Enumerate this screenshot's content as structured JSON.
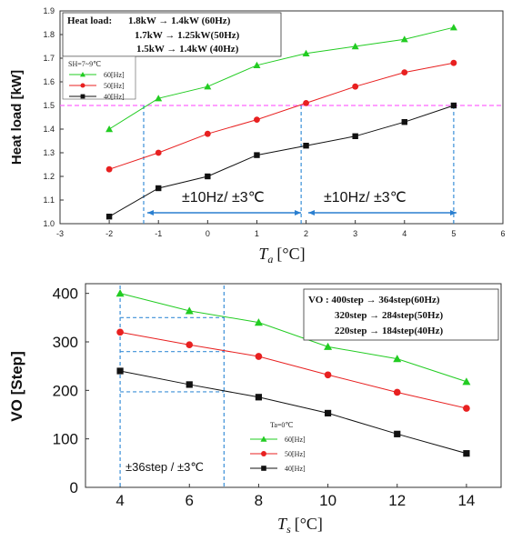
{
  "chart_data": [
    {
      "type": "line",
      "xlabel": "T_a [°C]",
      "xlabel_main": "T",
      "xlabel_sub": "a",
      "xlabel_unit": "[°C]",
      "ylabel": "Heat load [kW]",
      "xlim": [
        -3,
        6
      ],
      "ylim": [
        1.0,
        1.9
      ],
      "xticks": [
        "-3",
        "-2",
        "-1",
        "0",
        "1",
        "2",
        "3",
        "4",
        "5",
        "6"
      ],
      "yticks": [
        "1.0",
        "1.1",
        "1.2",
        "1.3",
        "1.4",
        "1.5",
        "1.6",
        "1.7",
        "1.8",
        "1.9"
      ],
      "x": [
        -2,
        -1,
        0,
        1,
        2,
        3,
        4,
        5
      ],
      "series": [
        {
          "name": "60[Hz]",
          "values": [
            1.4,
            1.53,
            1.58,
            1.67,
            1.72,
            1.75,
            1.78,
            1.83
          ],
          "color": "#22cc22",
          "marker": "triangle"
        },
        {
          "name": "50[Hz]",
          "values": [
            1.23,
            1.3,
            1.38,
            1.44,
            1.51,
            1.58,
            1.64,
            1.68
          ],
          "color": "#e82020",
          "marker": "circle"
        },
        {
          "name": "40[Hz]",
          "values": [
            1.03,
            1.15,
            1.2,
            1.29,
            1.33,
            1.37,
            1.43,
            1.5
          ],
          "color": "#111111",
          "marker": "square"
        }
      ],
      "legend_title": "SH=7~9℃",
      "legend_position": "top-left",
      "annotation_box": {
        "title": "Heat load:",
        "lines": [
          "1.8kW → 1.4kW  (60Hz)",
          "1.7kW → 1.25kW(50Hz)",
          "1.5kW → 1.4kW  (40Hz)"
        ]
      },
      "reference_line": {
        "y": 1.5,
        "color": "#ff66ff"
      },
      "guide_lines_x": [
        -1.3,
        1.9,
        5.0
      ],
      "range_annotations": [
        "±10Hz/ ±3℃",
        "±10Hz/ ±3℃"
      ]
    },
    {
      "type": "line",
      "xlabel": "T_s [°C]",
      "xlabel_main": "T",
      "xlabel_sub": "s",
      "xlabel_unit": "[°C]",
      "ylabel": "VO [Step]",
      "xlim": [
        3,
        15
      ],
      "ylim": [
        0,
        420
      ],
      "xticks": [
        "4",
        "6",
        "8",
        "10",
        "12",
        "14"
      ],
      "yticks": [
        "0",
        "100",
        "200",
        "300",
        "400"
      ],
      "x": [
        4,
        6,
        8,
        10,
        12,
        14
      ],
      "series": [
        {
          "name": "60[Hz]",
          "values": [
            400,
            364,
            340,
            290,
            265,
            218
          ],
          "color": "#22cc22",
          "marker": "triangle"
        },
        {
          "name": "50[Hz]",
          "values": [
            320,
            294,
            270,
            232,
            196,
            163
          ],
          "color": "#e82020",
          "marker": "circle"
        },
        {
          "name": "40[Hz]",
          "values": [
            240,
            212,
            186,
            153,
            110,
            70
          ],
          "color": "#111111",
          "marker": "square"
        }
      ],
      "legend_title": "Ta=0℃",
      "legend_position": "bottom-center",
      "annotation_box": {
        "lines": [
          "VO : 400step → 364step(60Hz)",
          "320step → 284step(50Hz)",
          "220step → 184step(40Hz)"
        ]
      },
      "guide_lines_x": [
        4,
        7
      ],
      "guide_lines_y": [
        350,
        280,
        197
      ],
      "range_annotation": "±36step / ±3℃"
    }
  ]
}
